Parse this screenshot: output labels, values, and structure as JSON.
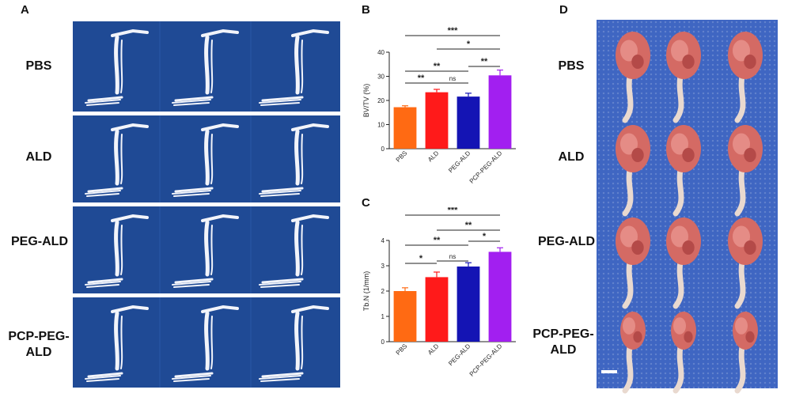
{
  "panels": {
    "a": "A",
    "b": "B",
    "c": "C",
    "d": "D"
  },
  "rows_a": [
    {
      "line1": "PBS",
      "line2": ""
    },
    {
      "line1": "ALD",
      "line2": ""
    },
    {
      "line1": "PEG-ALD",
      "line2": ""
    },
    {
      "line1": "PCP-PEG-",
      "line2": "ALD"
    }
  ],
  "rows_d": [
    {
      "line1": "PBS",
      "line2": ""
    },
    {
      "line1": "ALD",
      "line2": ""
    },
    {
      "line1": "PEG-ALD",
      "line2": ""
    },
    {
      "line1": "PCP-PEG-",
      "line2": "ALD"
    }
  ],
  "colors": {
    "PBS": "#ff6a13",
    "ALD": "#ff1a1a",
    "PEG-ALD": "#1414b4",
    "PCP-PEG-ALD": "#a21ff0",
    "ct_background": "#1f4a95",
    "photo_background": "#3f66c2"
  },
  "chart_data": [
    {
      "type": "bar",
      "categories": [
        "PBS",
        "ALD",
        "PEG-ALD",
        "PCP-PEG-ALD"
      ],
      "values": [
        17.2,
        23.4,
        21.6,
        30.4
      ],
      "errors": [
        0.6,
        1.2,
        1.4,
        2.2
      ],
      "ylabel": "BV/TV (%)",
      "xlabel": "",
      "ylim": [
        0,
        40
      ],
      "yticks": [
        "0",
        "10",
        "20",
        "30",
        "40"
      ],
      "significance": [
        {
          "from": 0,
          "to": 3,
          "label": "***"
        },
        {
          "from": 1,
          "to": 3,
          "label": "*"
        },
        {
          "from": 0,
          "to": 2,
          "label": "**"
        },
        {
          "from": 2,
          "to": 3,
          "label": "**"
        },
        {
          "from": 0,
          "to": 1,
          "label": "**"
        },
        {
          "from": 1,
          "to": 2,
          "label": "ns"
        }
      ]
    },
    {
      "type": "bar",
      "categories": [
        "PBS",
        "ALD",
        "PEG-ALD",
        "PCP-PEG-ALD"
      ],
      "values": [
        2.0,
        2.55,
        2.97,
        3.55
      ],
      "errors": [
        0.13,
        0.2,
        0.15,
        0.16
      ],
      "ylabel": "Tb.N (1/mm)",
      "xlabel": "",
      "ylim": [
        0,
        4
      ],
      "yticks": [
        "0",
        "1",
        "2",
        "3",
        "4"
      ],
      "significance": [
        {
          "from": 0,
          "to": 3,
          "label": "***"
        },
        {
          "from": 1,
          "to": 3,
          "label": "**"
        },
        {
          "from": 0,
          "to": 2,
          "label": "**"
        },
        {
          "from": 2,
          "to": 3,
          "label": "*"
        },
        {
          "from": 0,
          "to": 1,
          "label": "*"
        },
        {
          "from": 1,
          "to": 2,
          "label": "ns"
        }
      ]
    }
  ]
}
